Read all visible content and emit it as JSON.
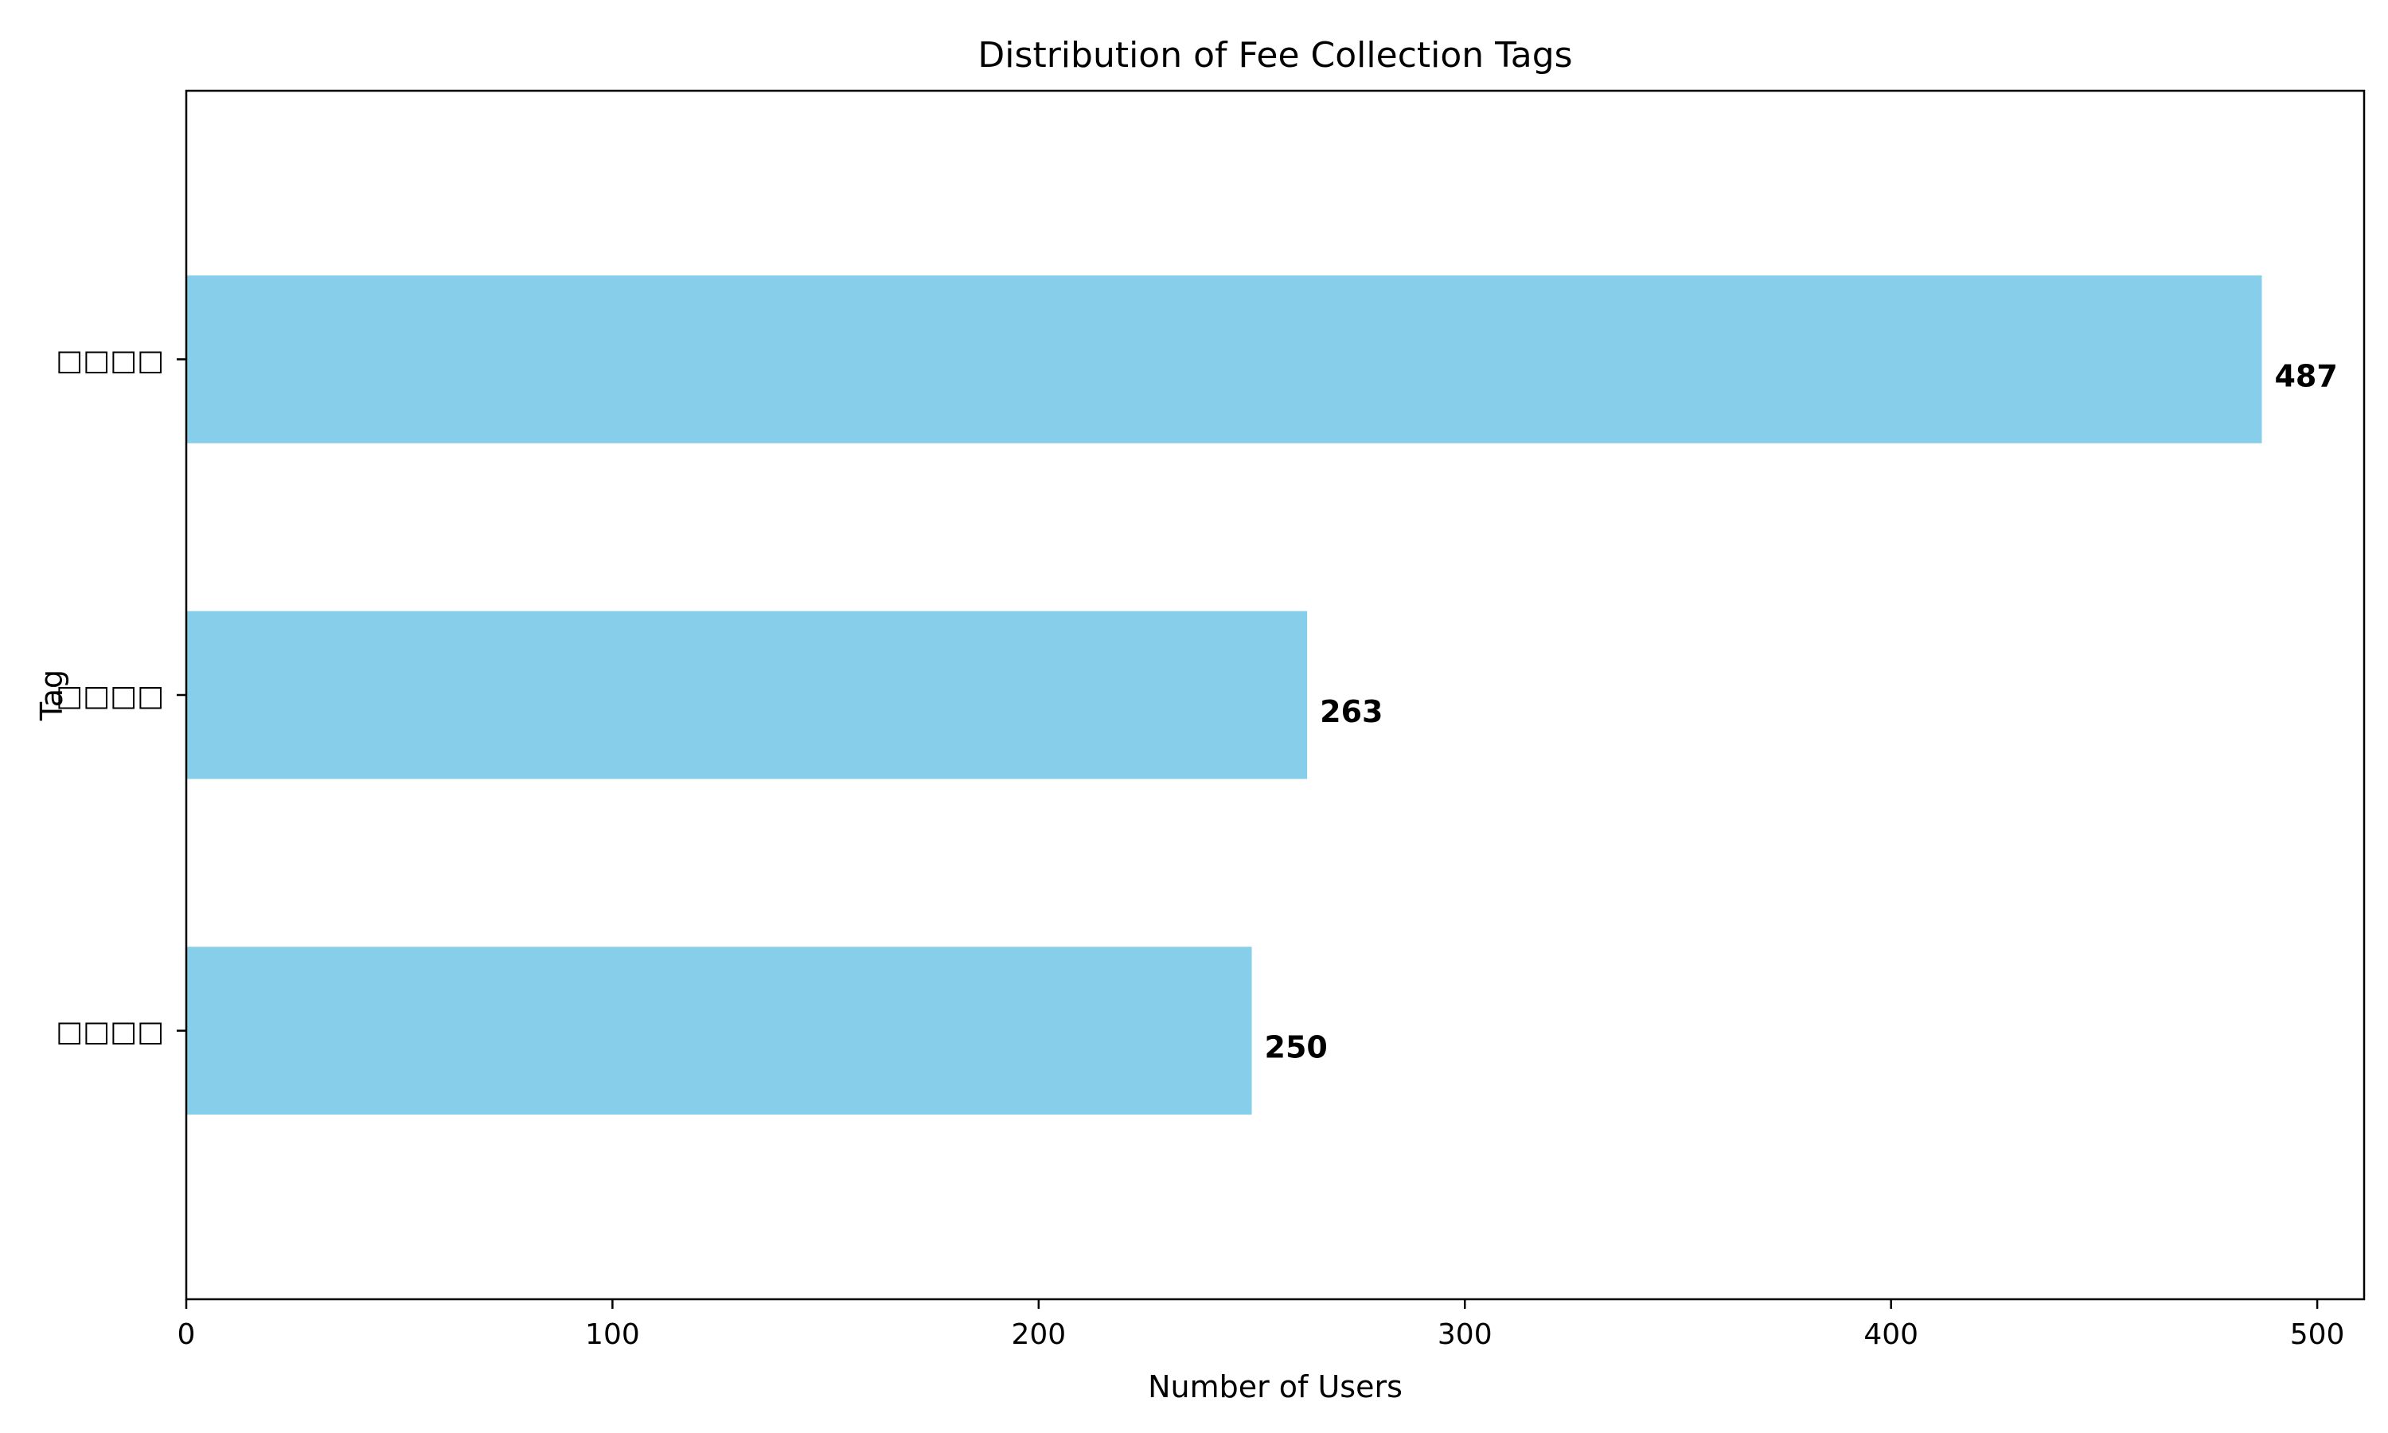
{
  "chart_data": {
    "type": "bar",
    "orientation": "horizontal",
    "title": "Distribution of Fee Collection Tags",
    "xlabel": "Number of Users",
    "ylabel": "Tag",
    "categories": [
      "□□□□",
      "□□□□",
      "□□□□"
    ],
    "values": [
      487,
      263,
      250
    ],
    "xlim": [
      0,
      511
    ],
    "xticks": [
      0,
      100,
      200,
      300,
      400,
      500
    ],
    "bar_color": "#87ceeb",
    "grid": false,
    "legend": "none"
  }
}
